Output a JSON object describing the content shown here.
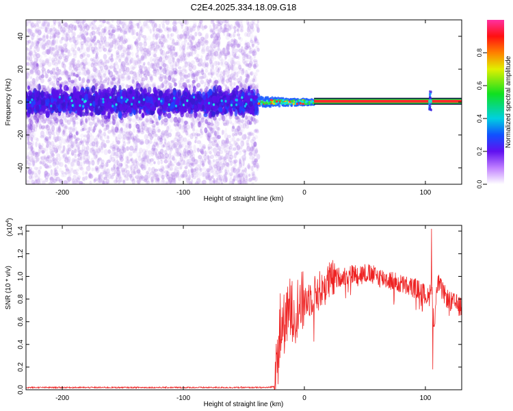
{
  "figure": {
    "title": "C2E4.2025.334.18.09.G18"
  },
  "chart_data": [
    {
      "type": "heatmap",
      "name": "spectrogram",
      "title": "C2E4.2025.334.18.09.G18",
      "xlabel": "Height of straight line (km)",
      "ylabel": "Frequency (Hz)",
      "xlim": [
        -230,
        130
      ],
      "ylim": [
        -50,
        50
      ],
      "xticks": [
        -200,
        -100,
        0,
        100
      ],
      "yticks": [
        -40,
        -20,
        0,
        20,
        40
      ],
      "xtick_labels": [
        "-200",
        "-100",
        "0",
        "100"
      ],
      "ytick_labels": [
        "-40",
        "-20",
        "0",
        "20",
        "40"
      ],
      "colorbar": {
        "label": "Normalized spectral amplitude",
        "range": [
          0,
          1
        ],
        "ticks": [
          0.0,
          0.2,
          0.4,
          0.6,
          0.8
        ],
        "tick_labels": [
          "0.0",
          "0.2",
          "0.4",
          "0.6",
          "0.8"
        ]
      },
      "regions": [
        {
          "description": "scattered noise",
          "x_range": [
            -230,
            -38
          ],
          "freq_range": [
            -50,
            50
          ]
        },
        {
          "description": "noisy carrier band",
          "x_range": [
            -230,
            -38
          ],
          "freq_range": [
            -10,
            10
          ]
        },
        {
          "description": "carrier transition",
          "x_range": [
            -38,
            8
          ],
          "freq_range": [
            -3,
            3
          ]
        },
        {
          "description": "clean carrier line",
          "x_range": [
            8,
            130
          ],
          "freq_center": 0.5
        },
        {
          "description": "local broadening",
          "x": 104,
          "freq_range": [
            -5,
            7
          ]
        }
      ]
    },
    {
      "type": "line",
      "name": "snr",
      "xlabel": "Height of straight line (km)",
      "ylabel": "SNR (10 * v/v)",
      "y_scale_label": "(x10",
      "y_scale_exponent": "4",
      "y_scale_suffix": ")",
      "xlim": [
        -230,
        130
      ],
      "ylim": [
        0,
        1.45
      ],
      "xticks": [
        -200,
        -100,
        0,
        100
      ],
      "yticks": [
        0.0,
        0.2,
        0.4,
        0.6,
        0.8,
        1.0,
        1.2,
        1.4
      ],
      "xtick_labels": [
        "-200",
        "-100",
        "0",
        "100"
      ],
      "ytick_labels": [
        "0.0",
        "0.2",
        "0.4",
        "0.6",
        "0.8",
        "1.0",
        "1.2",
        "1.4"
      ],
      "series": [
        {
          "name": "SNR",
          "color": "#ee2222",
          "x": [
            -230,
            -200,
            -150,
            -100,
            -50,
            -30,
            -25,
            -22,
            -20,
            -15,
            -10,
            -5,
            0,
            5,
            10,
            15,
            20,
            25,
            30,
            40,
            50,
            60,
            70,
            80,
            90,
            95,
            100,
            103,
            105,
            107,
            110,
            115,
            120,
            125,
            130
          ],
          "y": [
            0.02,
            0.02,
            0.02,
            0.02,
            0.02,
            0.02,
            0.03,
            0.28,
            0.5,
            0.62,
            0.7,
            0.75,
            0.78,
            0.82,
            0.85,
            0.9,
            0.95,
            0.98,
            1.0,
            1.02,
            1.03,
            1.0,
            0.97,
            0.93,
            0.9,
            0.88,
            0.84,
            0.8,
            1.0,
            0.55,
            0.95,
            0.85,
            0.78,
            0.76,
            0.72
          ],
          "spike_peaks": [
            {
              "x": 105,
              "y": 1.42
            },
            {
              "x": 106,
              "y": 0.18
            },
            {
              "x": -20,
              "y": 0.85
            },
            {
              "x": -12,
              "y": 0.98
            }
          ]
        }
      ]
    }
  ]
}
